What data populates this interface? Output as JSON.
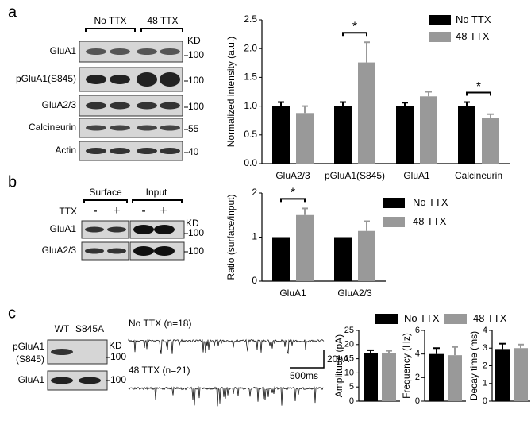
{
  "panels": [
    "a",
    "b",
    "c"
  ],
  "blot_a": {
    "conditions": [
      "No TTX",
      "48 TTX"
    ],
    "unit": "KD",
    "rows": [
      {
        "label": "GluA1",
        "marker": 100
      },
      {
        "label": "pGluA1(S845)",
        "marker": 100
      },
      {
        "label": "GluA2/3",
        "marker": 100
      },
      {
        "label": "Calcineurin",
        "marker": 55
      },
      {
        "label": "Actin",
        "marker": 40
      }
    ]
  },
  "blot_b": {
    "groups": [
      "Surface",
      "Input"
    ],
    "treatment": "TTX",
    "lanes": [
      "-",
      "+",
      "-",
      "+"
    ],
    "unit": "KD",
    "rows": [
      {
        "label": "GluA1",
        "marker": 100
      },
      {
        "label": "GluA2/3",
        "marker": 100
      }
    ]
  },
  "blot_c": {
    "lanes": [
      "WT",
      "S845A"
    ],
    "unit": "KD",
    "rows": [
      {
        "label": [
          "pGluA1",
          "(S845)"
        ],
        "marker": 100
      },
      {
        "label": [
          "GluA1"
        ],
        "marker": 100
      }
    ]
  },
  "traces": {
    "labels": [
      "No TTX (n=18)",
      "48 TTX (n=21)"
    ],
    "scale_y": "20pA",
    "scale_x": "500ms"
  },
  "chart_data": [
    {
      "type": "bar",
      "ylabel": "Normalized intensity (a.u.)",
      "categories": [
        "GluA2/3",
        "pGluA1(S845)",
        "GluA1",
        "Calcineurin"
      ],
      "series": [
        {
          "name": "No TTX",
          "color": "#000000",
          "values": [
            1,
            1,
            1,
            1
          ],
          "errors": [
            0.07,
            0.07,
            0.06,
            0.07
          ]
        },
        {
          "name": "48 TTX",
          "color": "#999999",
          "values": [
            0.88,
            1.76,
            1.17,
            0.8
          ],
          "errors": [
            0.12,
            0.35,
            0.08,
            0.06
          ]
        }
      ],
      "significance": [
        null,
        "*",
        null,
        "*"
      ],
      "ylim": [
        0,
        2.5
      ],
      "yticks": [
        {
          "value": 0,
          "label": "0.0"
        },
        0.5,
        {
          "value": 1,
          "label": "1.0"
        },
        1.5,
        {
          "value": 2,
          "label": "2.0"
        },
        2.5
      ]
    },
    {
      "type": "bar",
      "ylabel": "Ratio (surface/input)",
      "categories": [
        "GluA1",
        "GluA2/3"
      ],
      "series": [
        {
          "name": "No TTX",
          "color": "#000000",
          "values": [
            1,
            1
          ]
        },
        {
          "name": "48 TTX",
          "color": "#999999",
          "values": [
            1.5,
            1.14
          ],
          "errors": [
            0.15,
            0.22
          ]
        }
      ],
      "significance": [
        "*",
        null
      ],
      "ylim": [
        0,
        2
      ],
      "yticks": [
        0,
        1,
        2
      ]
    },
    {
      "type": "bar",
      "ylabel": "Amplitude (pA)",
      "series": [
        {
          "name": "No TTX",
          "color": "#000000",
          "values": [
            17
          ],
          "errors": [
            1
          ]
        },
        {
          "name": "48 TTX",
          "color": "#999999",
          "values": [
            17
          ],
          "errors": [
            0.8
          ]
        }
      ],
      "ylim": [
        0,
        25
      ],
      "yticks": [
        0,
        5,
        10,
        15,
        20,
        25
      ]
    },
    {
      "type": "bar",
      "ylabel": "Frequency (Hz)",
      "series": [
        {
          "color": "#000000",
          "values": [
            4.0
          ],
          "errors": [
            0.5
          ]
        },
        {
          "color": "#999999",
          "values": [
            3.9
          ],
          "errors": [
            0.7
          ]
        }
      ],
      "ylim": [
        0,
        6
      ],
      "yticks": [
        0,
        2,
        4,
        6
      ]
    },
    {
      "type": "bar",
      "ylabel": "Decay time (ms)",
      "series": [
        {
          "color": "#000000",
          "values": [
            2.95
          ],
          "errors": [
            0.3
          ]
        },
        {
          "color": "#999999",
          "values": [
            3.0
          ],
          "errors": [
            0.2
          ]
        }
      ],
      "ylim": [
        0,
        4
      ],
      "yticks": [
        0,
        1,
        2,
        3,
        4
      ]
    }
  ]
}
